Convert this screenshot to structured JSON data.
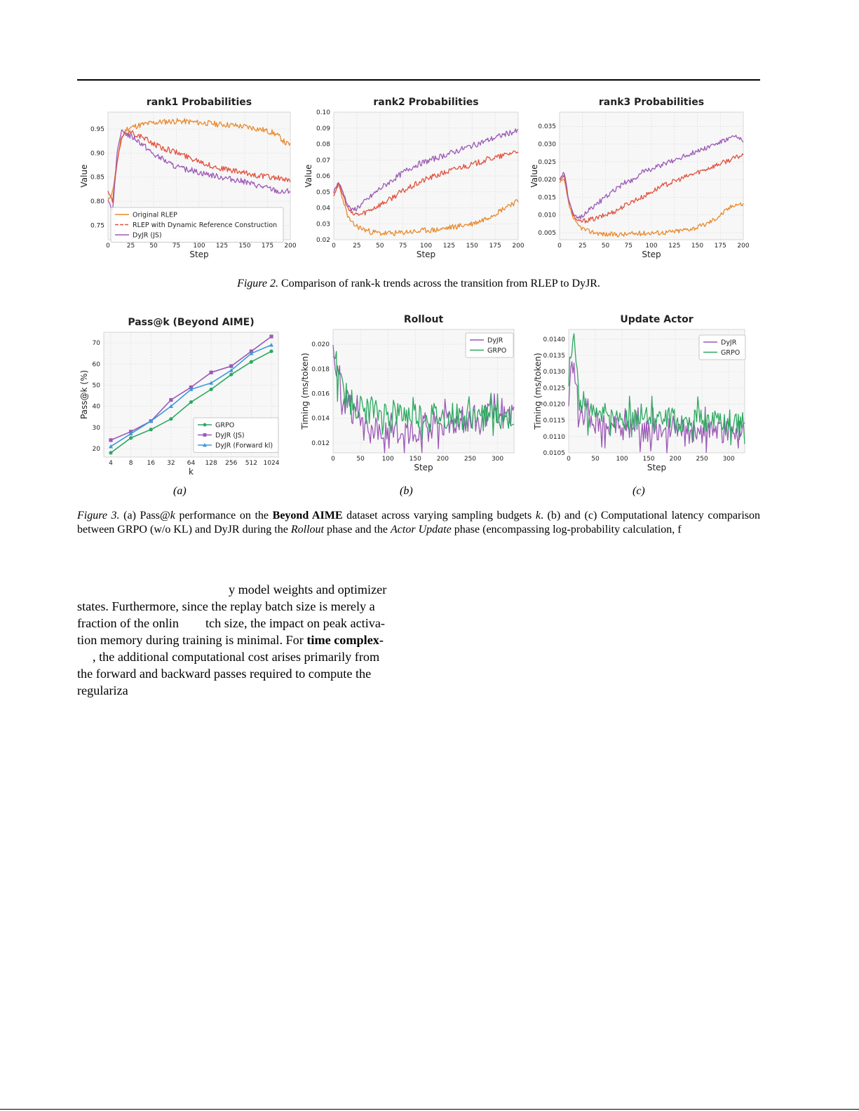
{
  "figure2": {
    "caption_label": "Figure 2.",
    "caption_text": "Comparison of rank-k trends across the transition from RLEP to DyJR.",
    "colors": {
      "Original RLEP": "#e8892c",
      "RLEP with Dynamic Reference Construction": "#e0523f",
      "DyJR (JS)": "#9b59b6"
    },
    "panels": [
      {
        "title": "rank1 Probabilities",
        "xlabel": "Step",
        "ylabel": "Value"
      },
      {
        "title": "rank2 Probabilities",
        "xlabel": "Step",
        "ylabel": "Value"
      },
      {
        "title": "rank3 Probabilities",
        "xlabel": "Step",
        "ylabel": "Value"
      }
    ]
  },
  "figure3": {
    "caption_label": "Figure 3.",
    "caption_parts": {
      "a1": "(a) Pass@",
      "k1": "k",
      "a2": " performance on the ",
      "bold1": "Beyond AIME",
      "a3": " dataset across varying sampling budgets ",
      "k2": "k",
      "a4": ". (b) and (c) Computational latency comparison between GRPO (w/o KL) and DyJR during the ",
      "it1": "Rollout",
      "a5": " phase and the ",
      "it2": "Actor Update",
      "a6": " phase (encompassing log-probability calculation, f"
    },
    "sublabels": [
      "(a)",
      "(b)",
      "(c)"
    ],
    "colors": {
      "GRPO": "#2ca860",
      "DyJR (JS)": "#9b59b6",
      "DyJR (Forward kl)": "#3a9bdc",
      "DyJR": "#9b59b6"
    },
    "panels": [
      {
        "title": "Pass@k (Beyond AIME)",
        "xlabel": "k",
        "ylabel": "Pass@k (%)"
      },
      {
        "title": "Rollout",
        "xlabel": "Step",
        "ylabel": "Timing (ms/token)"
      },
      {
        "title": "Update Actor",
        "xlabel": "Step",
        "ylabel": "Timing (ms/token)"
      }
    ]
  },
  "body": {
    "l1": "y model weights and optimizer",
    "l2": "states. Furthermore, since the replay batch size is merely a",
    "l3a": "fraction of the onlin",
    "l3b": "tch size, the impact on peak activa-",
    "l4a": "tion memory during training is minimal. For ",
    "l4b": "time complex-",
    "l5": ", the additional computational cost arises primarily from",
    "l6": "the forward and backward passes required to compute the",
    "l7": "regulariza"
  },
  "chart_data": [
    {
      "type": "line",
      "title": "rank1 Probabilities",
      "xlabel": "Step",
      "ylabel": "Value",
      "xlim": [
        0,
        200
      ],
      "ylim": [
        0.72,
        0.985
      ],
      "xticks": [
        0,
        25,
        50,
        75,
        100,
        125,
        150,
        175,
        200
      ],
      "yticks": [
        0.75,
        0.8,
        0.85,
        0.9,
        0.95
      ],
      "grid": true,
      "legend": "lower-left",
      "series": [
        {
          "name": "Original RLEP",
          "x": [
            0,
            5,
            10,
            15,
            20,
            30,
            40,
            50,
            60,
            70,
            80,
            90,
            100,
            110,
            120,
            130,
            140,
            150,
            160,
            170,
            180,
            185,
            190,
            195,
            200
          ],
          "values": [
            0.8,
            0.82,
            0.88,
            0.93,
            0.95,
            0.956,
            0.96,
            0.963,
            0.965,
            0.966,
            0.966,
            0.965,
            0.963,
            0.962,
            0.96,
            0.959,
            0.957,
            0.955,
            0.952,
            0.948,
            0.943,
            0.938,
            0.93,
            0.92,
            0.918
          ]
        },
        {
          "name": "RLEP with Dynamic Reference Construction",
          "x": [
            0,
            5,
            10,
            15,
            20,
            30,
            40,
            50,
            60,
            70,
            80,
            90,
            100,
            110,
            120,
            130,
            140,
            150,
            160,
            170,
            180,
            190,
            200
          ],
          "values": [
            0.82,
            0.8,
            0.88,
            0.935,
            0.945,
            0.94,
            0.93,
            0.92,
            0.91,
            0.905,
            0.898,
            0.89,
            0.885,
            0.875,
            0.87,
            0.866,
            0.862,
            0.858,
            0.855,
            0.852,
            0.85,
            0.847,
            0.84
          ]
        },
        {
          "name": "DyJR (JS)",
          "x": [
            0,
            5,
            10,
            15,
            20,
            30,
            40,
            50,
            60,
            70,
            80,
            90,
            100,
            110,
            120,
            130,
            140,
            150,
            160,
            170,
            180,
            190,
            200
          ],
          "values": [
            0.8,
            0.78,
            0.9,
            0.945,
            0.94,
            0.93,
            0.915,
            0.897,
            0.887,
            0.875,
            0.868,
            0.865,
            0.86,
            0.856,
            0.852,
            0.848,
            0.845,
            0.84,
            0.835,
            0.83,
            0.825,
            0.818,
            0.822
          ]
        }
      ]
    },
    {
      "type": "line",
      "title": "rank2 Probabilities",
      "xlabel": "Step",
      "ylabel": "Value",
      "xlim": [
        0,
        200
      ],
      "ylim": [
        0.02,
        0.1
      ],
      "xticks": [
        0,
        25,
        50,
        75,
        100,
        125,
        150,
        175,
        200
      ],
      "yticks": [
        0.02,
        0.03,
        0.04,
        0.05,
        0.06,
        0.07,
        0.08,
        0.09,
        0.1
      ],
      "grid": true,
      "series": [
        {
          "name": "Original RLEP",
          "x": [
            0,
            5,
            10,
            15,
            20,
            30,
            40,
            50,
            60,
            70,
            80,
            90,
            100,
            110,
            120,
            130,
            140,
            150,
            160,
            170,
            180,
            190,
            200
          ],
          "values": [
            0.05,
            0.055,
            0.045,
            0.035,
            0.03,
            0.027,
            0.025,
            0.024,
            0.024,
            0.024,
            0.025,
            0.025,
            0.026,
            0.026,
            0.027,
            0.028,
            0.029,
            0.03,
            0.032,
            0.035,
            0.038,
            0.042,
            0.044
          ]
        },
        {
          "name": "RLEP with Dynamic Reference Construction",
          "x": [
            0,
            5,
            10,
            15,
            20,
            30,
            40,
            50,
            60,
            70,
            80,
            90,
            100,
            110,
            120,
            130,
            140,
            150,
            160,
            170,
            180,
            190,
            200
          ],
          "values": [
            0.048,
            0.055,
            0.048,
            0.04,
            0.036,
            0.036,
            0.039,
            0.042,
            0.045,
            0.049,
            0.052,
            0.055,
            0.058,
            0.06,
            0.062,
            0.064,
            0.066,
            0.067,
            0.069,
            0.071,
            0.072,
            0.074,
            0.076
          ]
        },
        {
          "name": "DyJR (JS)",
          "x": [
            0,
            5,
            10,
            15,
            20,
            30,
            40,
            50,
            60,
            70,
            80,
            90,
            100,
            110,
            120,
            130,
            140,
            150,
            160,
            170,
            180,
            190,
            200
          ],
          "values": [
            0.05,
            0.056,
            0.05,
            0.042,
            0.038,
            0.042,
            0.047,
            0.052,
            0.056,
            0.06,
            0.064,
            0.067,
            0.069,
            0.071,
            0.073,
            0.075,
            0.077,
            0.079,
            0.081,
            0.083,
            0.085,
            0.087,
            0.088
          ]
        }
      ]
    },
    {
      "type": "line",
      "title": "rank3 Probabilities",
      "xlabel": "Step",
      "ylabel": "Value",
      "xlim": [
        0,
        200
      ],
      "ylim": [
        0.003,
        0.039
      ],
      "xticks": [
        0,
        25,
        50,
        75,
        100,
        125,
        150,
        175,
        200
      ],
      "yticks": [
        0.005,
        0.01,
        0.015,
        0.02,
        0.025,
        0.03,
        0.035
      ],
      "grid": true,
      "series": [
        {
          "name": "Original RLEP",
          "x": [
            0,
            5,
            10,
            15,
            20,
            30,
            40,
            50,
            60,
            70,
            80,
            90,
            100,
            110,
            120,
            130,
            140,
            150,
            160,
            170,
            180,
            190,
            200
          ],
          "values": [
            0.019,
            0.02,
            0.013,
            0.009,
            0.007,
            0.0055,
            0.005,
            0.0045,
            0.0045,
            0.0045,
            0.0047,
            0.0048,
            0.005,
            0.005,
            0.0052,
            0.0055,
            0.006,
            0.0065,
            0.0075,
            0.009,
            0.011,
            0.013,
            0.013
          ]
        },
        {
          "name": "RLEP with Dynamic Reference Construction",
          "x": [
            0,
            5,
            10,
            15,
            20,
            30,
            40,
            50,
            60,
            70,
            80,
            90,
            100,
            110,
            120,
            130,
            140,
            150,
            160,
            170,
            180,
            190,
            200
          ],
          "values": [
            0.02,
            0.021,
            0.014,
            0.01,
            0.008,
            0.0085,
            0.009,
            0.01,
            0.011,
            0.0125,
            0.014,
            0.015,
            0.0165,
            0.018,
            0.019,
            0.02,
            0.021,
            0.022,
            0.023,
            0.024,
            0.025,
            0.026,
            0.027
          ]
        },
        {
          "name": "DyJR (JS)",
          "x": [
            0,
            5,
            10,
            15,
            20,
            30,
            40,
            50,
            60,
            70,
            80,
            90,
            100,
            110,
            120,
            130,
            140,
            150,
            160,
            170,
            180,
            190,
            200
          ],
          "values": [
            0.02,
            0.022,
            0.014,
            0.01,
            0.009,
            0.011,
            0.013,
            0.015,
            0.017,
            0.019,
            0.02,
            0.022,
            0.023,
            0.024,
            0.025,
            0.026,
            0.027,
            0.028,
            0.029,
            0.03,
            0.031,
            0.032,
            0.031
          ]
        }
      ]
    },
    {
      "type": "line",
      "title": "Pass@k (Beyond AIME)",
      "xlabel": "k",
      "ylabel": "Pass@k (%)",
      "categories": [
        "4",
        "8",
        "16",
        "32",
        "64",
        "128",
        "256",
        "512",
        "1024"
      ],
      "ylim": [
        16,
        75
      ],
      "yticks": [
        20,
        30,
        40,
        50,
        60,
        70
      ],
      "grid": true,
      "legend": "lower-right",
      "series": [
        {
          "name": "GRPO",
          "values": [
            18,
            25,
            29,
            34,
            42,
            48,
            55,
            61,
            66
          ]
        },
        {
          "name": "DyJR (JS)",
          "values": [
            24,
            28,
            33,
            43,
            49,
            56,
            59,
            66,
            73
          ]
        },
        {
          "name": "DyJR (Forward kl)",
          "values": [
            21,
            27,
            33,
            40,
            48,
            51,
            57,
            65,
            69
          ]
        }
      ]
    },
    {
      "type": "line",
      "title": "Rollout",
      "xlabel": "Step",
      "ylabel": "Timing (ms/token)",
      "xlim": [
        0,
        330
      ],
      "ylim": [
        0.0112,
        0.0212
      ],
      "xticks": [
        0,
        50,
        100,
        150,
        200,
        250,
        300
      ],
      "yticks": [
        0.012,
        0.014,
        0.016,
        0.018,
        0.02
      ],
      "grid": true,
      "legend": "top-right",
      "series": [
        {
          "name": "DyJR",
          "x": [
            0,
            10,
            20,
            30,
            40,
            50,
            60,
            70,
            80,
            90,
            100,
            110,
            120,
            130,
            140,
            150,
            160,
            170,
            180,
            190,
            200,
            210,
            220,
            230,
            240,
            250,
            260,
            270,
            280,
            290,
            300,
            310,
            320,
            330
          ],
          "values": [
            0.0205,
            0.0165,
            0.0155,
            0.015,
            0.014,
            0.0132,
            0.013,
            0.0128,
            0.013,
            0.0128,
            0.0126,
            0.0128,
            0.013,
            0.0132,
            0.013,
            0.0131,
            0.0134,
            0.0136,
            0.0135,
            0.0138,
            0.0136,
            0.0138,
            0.0137,
            0.014,
            0.0138,
            0.014,
            0.0139,
            0.014,
            0.0141,
            0.0142,
            0.014,
            0.0142,
            0.0143,
            0.0145
          ]
        },
        {
          "name": "GRPO",
          "x": [
            0,
            10,
            20,
            30,
            40,
            50,
            60,
            70,
            80,
            90,
            100,
            110,
            120,
            130,
            140,
            150,
            160,
            170,
            180,
            190,
            200,
            210,
            220,
            230,
            240,
            250,
            260,
            270,
            280,
            290,
            300,
            310,
            320,
            330
          ],
          "values": [
            0.0195,
            0.017,
            0.016,
            0.0155,
            0.015,
            0.0148,
            0.0145,
            0.0146,
            0.0143,
            0.0145,
            0.0142,
            0.0144,
            0.0142,
            0.0143,
            0.0141,
            0.0143,
            0.0142,
            0.0141,
            0.0142,
            0.0141,
            0.014,
            0.0141,
            0.0142,
            0.0141,
            0.014,
            0.0141,
            0.0142,
            0.014,
            0.0141,
            0.0142,
            0.014,
            0.0141,
            0.014,
            0.0141
          ]
        }
      ]
    },
    {
      "type": "line",
      "title": "Update Actor",
      "xlabel": "Step",
      "ylabel": "Timing (ms/token)",
      "xlim": [
        0,
        330
      ],
      "ylim": [
        0.0105,
        0.0143
      ],
      "xticks": [
        0,
        50,
        100,
        150,
        200,
        250,
        300
      ],
      "yticks": [
        0.0105,
        0.011,
        0.0115,
        0.012,
        0.0125,
        0.013,
        0.0135,
        0.014
      ],
      "grid": true,
      "legend": "top-right",
      "series": [
        {
          "name": "DyJR",
          "x": [
            0,
            5,
            10,
            15,
            20,
            30,
            40,
            60,
            80,
            100,
            120,
            140,
            160,
            180,
            200,
            220,
            240,
            260,
            280,
            300,
            320,
            330
          ],
          "values": [
            0.0122,
            0.013,
            0.0128,
            0.0124,
            0.0117,
            0.0116,
            0.0115,
            0.0114,
            0.0113,
            0.0112,
            0.0112,
            0.0111,
            0.0112,
            0.0111,
            0.0111,
            0.0112,
            0.0111,
            0.0112,
            0.0111,
            0.0112,
            0.0113,
            0.0114
          ]
        },
        {
          "name": "GRPO",
          "x": [
            0,
            5,
            10,
            15,
            20,
            30,
            40,
            60,
            80,
            100,
            120,
            140,
            160,
            180,
            200,
            220,
            240,
            260,
            280,
            300,
            320,
            330
          ],
          "values": [
            0.0128,
            0.0136,
            0.014,
            0.0132,
            0.012,
            0.0118,
            0.0117,
            0.0117,
            0.0116,
            0.0116,
            0.0115,
            0.0116,
            0.0115,
            0.0116,
            0.0115,
            0.0115,
            0.0116,
            0.0115,
            0.0116,
            0.0115,
            0.0114,
            0.0115
          ]
        }
      ]
    }
  ]
}
